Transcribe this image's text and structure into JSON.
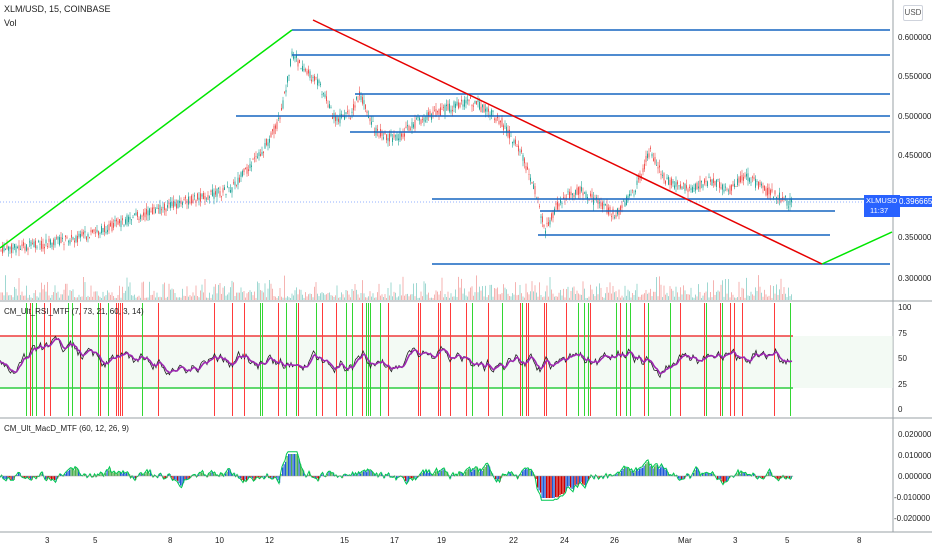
{
  "symbol_title": "XLM/USD, 15, COINBASE",
  "vol_label": "Vol",
  "currency_button": "USD",
  "price_badge": {
    "symbol": "XLMUSD",
    "price": "0.396665",
    "countdown": "11:37"
  },
  "price_axis": [
    "0.600000",
    "0.550000",
    "0.500000",
    "0.450000",
    "0.400000",
    "0.350000",
    "0.300000"
  ],
  "rsi_label": "CM_Ult_RSI_MTF (7, 73, 21, 60, 3, 14)",
  "rsi_axis": [
    "100",
    "75",
    "50",
    "25",
    "0"
  ],
  "macd_label": "CM_Ult_MacD_MTF (60, 12, 26, 9)",
  "macd_axis": [
    "0.020000",
    "0.010000",
    "0.000000",
    "-0.010000",
    "-0.020000"
  ],
  "time_axis": [
    "3",
    "5",
    "8",
    "10",
    "12",
    "15",
    "17",
    "19",
    "22",
    "24",
    "26",
    "Mar",
    "3",
    "5",
    "8"
  ],
  "colors": {
    "up": "#26a69a",
    "down": "#ef5350",
    "trend_up": "#00e600",
    "trend_down": "#e60000",
    "level": "#1565c0",
    "rsi": "#9c27b0",
    "macd_hist_pos": "#2e7d32"
  }
}
